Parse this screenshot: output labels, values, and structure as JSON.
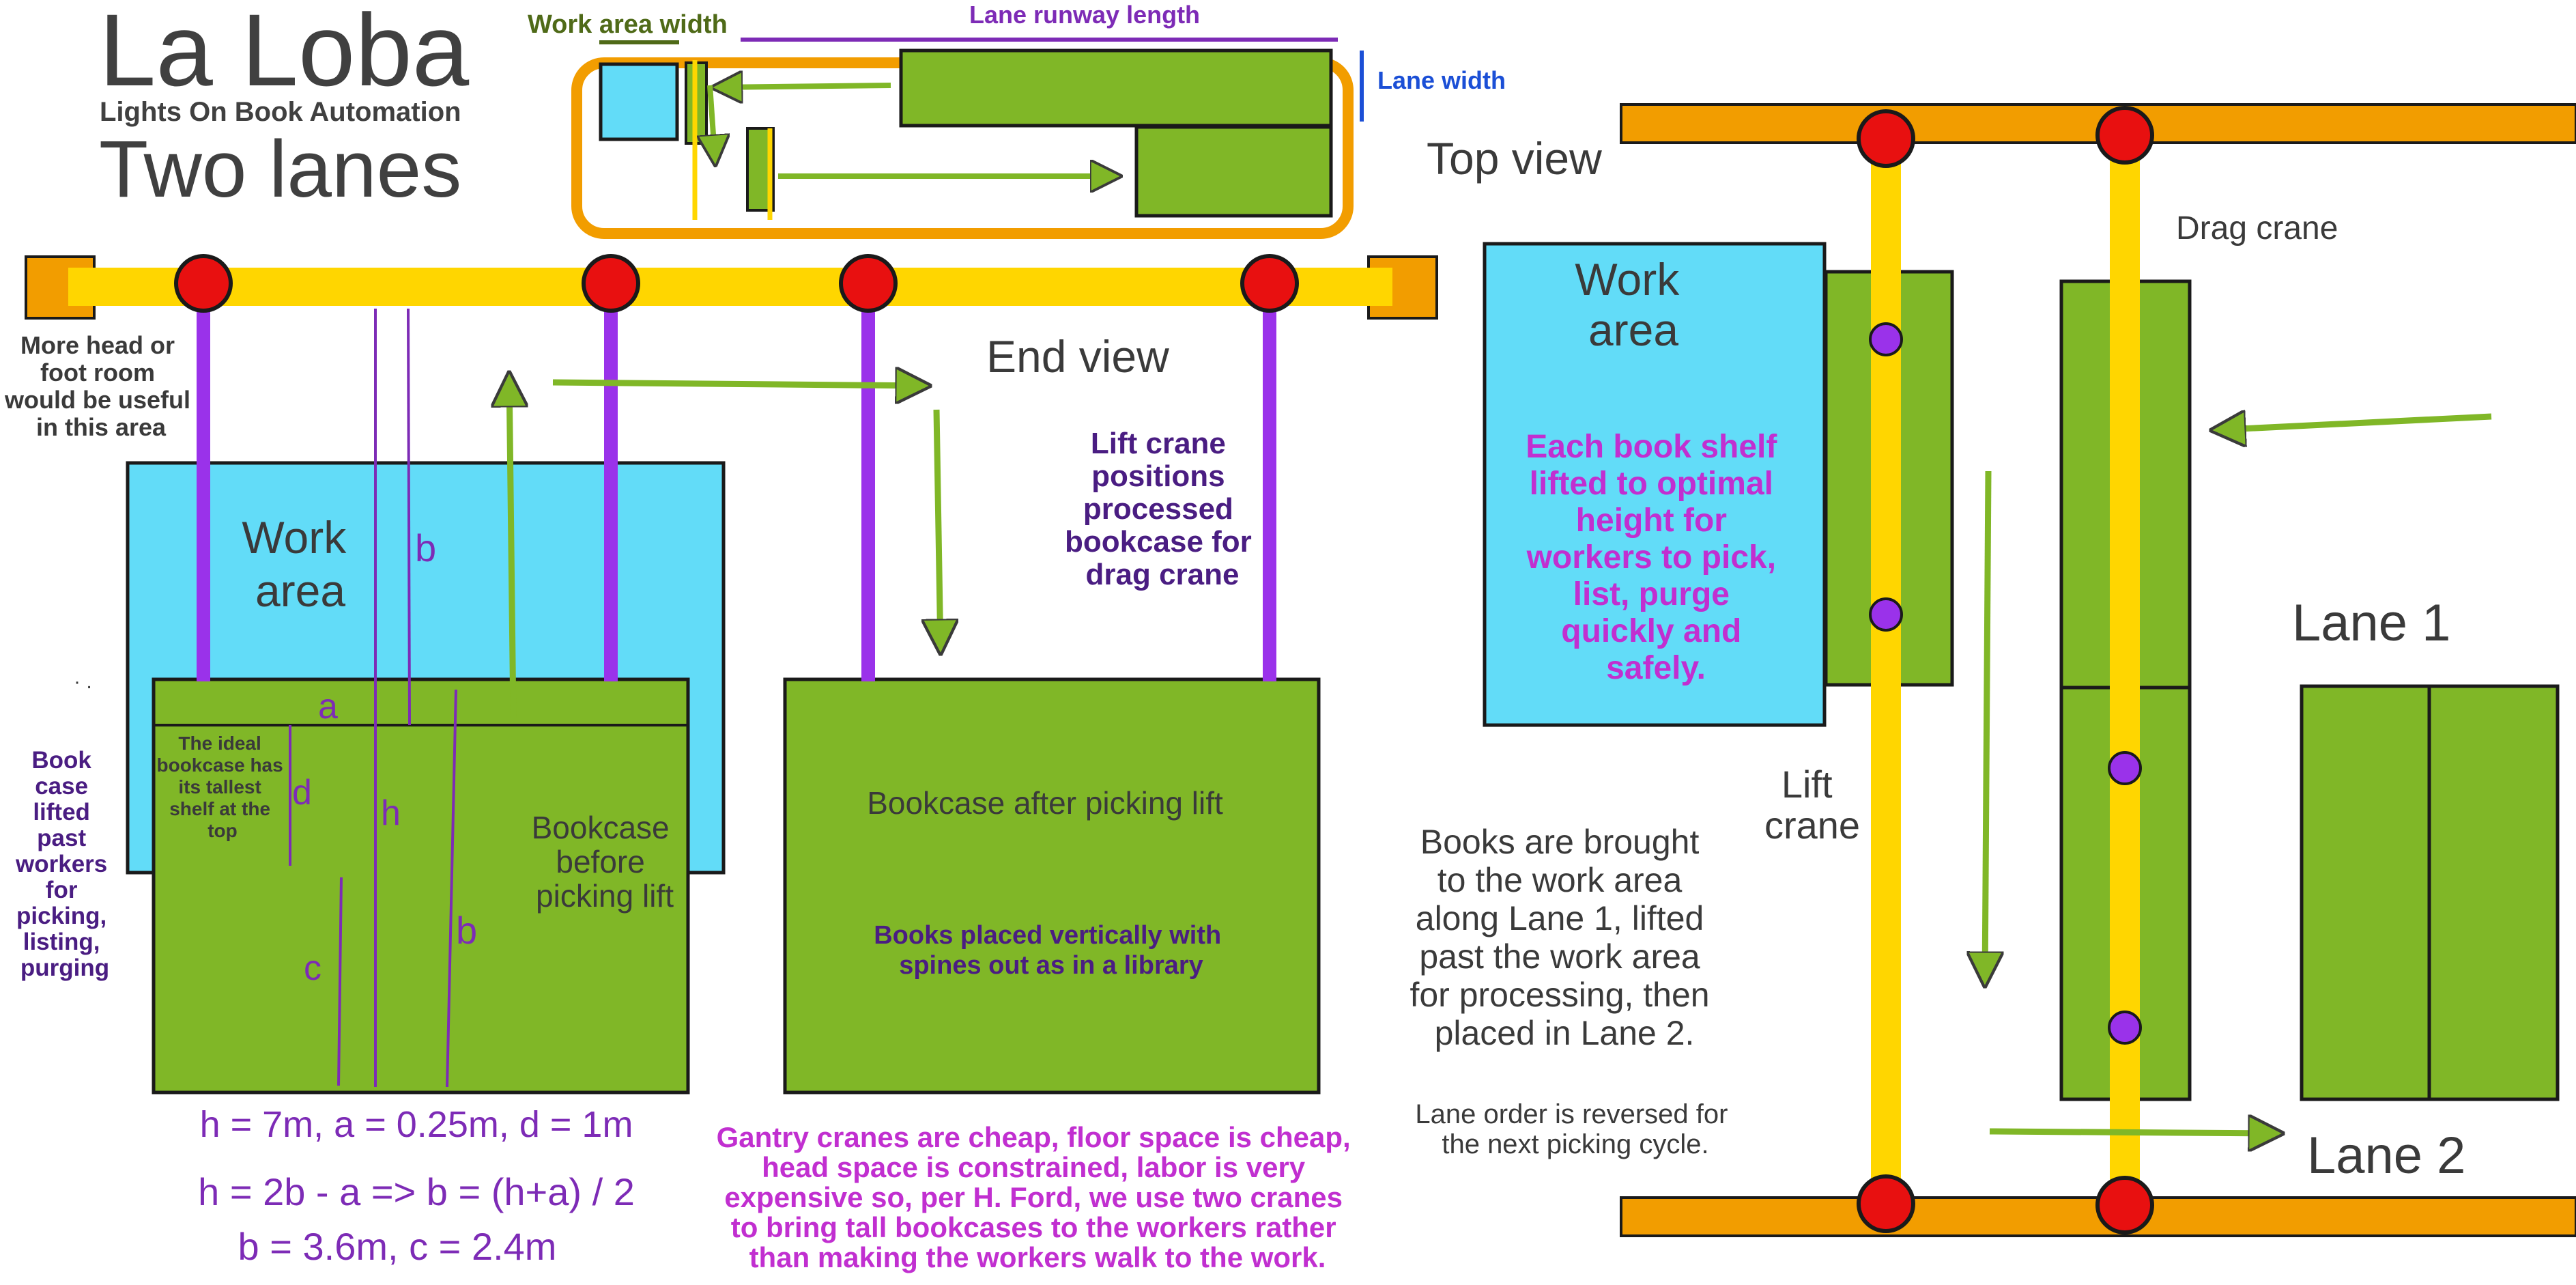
{
  "title": {
    "name": "La Loba",
    "subtitle": "Lights On Book Automation",
    "variant": "Two lanes"
  },
  "inset": {
    "work_area_width_label": "Work area width",
    "lane_runway_label": "Lane runway length",
    "lane_width_label": "Lane width"
  },
  "end_view": {
    "title": "End view",
    "headroom_note": [
      "More head or",
      "foot room",
      "would be useful",
      "in this area"
    ],
    "work_area_label": [
      "Work",
      "area"
    ],
    "book_case_lifted_note": [
      "Book",
      "case",
      "lifted",
      "past",
      "workers",
      "for",
      "picking,",
      "listing,",
      "purging"
    ],
    "ideal_bookcase_note": [
      "The ideal",
      "bookcase has",
      "its  tallest",
      "shelf at the",
      "top"
    ],
    "bookcase_before_label": [
      "Bookcase",
      "before",
      "picking lift"
    ],
    "bookcase_after_label": "Bookcase after picking  lift",
    "books_placed_note": [
      "Books placed vertically with",
      "spines out as in a library"
    ],
    "lift_crane_note": [
      "Lift crane",
      "positions",
      "processed",
      "bookcase for",
      "drag crane"
    ],
    "dimension_letters": {
      "a": "a",
      "b": "b",
      "c": "c",
      "d": "d",
      "h": "h"
    },
    "stray_mark": "· .",
    "equations": [
      "h = 7m, a =  0.25m, d = 1m",
      "h = 2b - a => b = (h+a) / 2",
      "b = 3.6m, c = 2.4m"
    ],
    "gantry_note": [
      "Gantry cranes are cheap, floor space is cheap,",
      "head space is constrained, labor is very",
      "expensive so, per H. Ford,  we use two cranes",
      "to bring tall bookcases to the workers rather",
      "than making the workers walk to the work."
    ]
  },
  "top_view": {
    "title": "Top view",
    "work_area_label": [
      "Work",
      "area"
    ],
    "shelf_note": [
      "Each book shelf",
      "lifted to optimal",
      "height for",
      "workers to pick,",
      "list, purge",
      "quickly and",
      "safely."
    ],
    "drag_crane_label": "Drag crane",
    "lift_crane_label": [
      "Lift",
      "crane"
    ],
    "lane1_label": "Lane 1",
    "lane2_label": "Lane 2",
    "books_brought_note": [
      "Books are brought",
      "to the work area",
      "along Lane 1, lifted",
      "past the work area",
      "for processing, then",
      "placed in Lane 2."
    ],
    "lane_order_note": [
      "Lane order is reversed for",
      "the next picking cycle."
    ]
  },
  "colors": {
    "work_area": "#62dcf8",
    "bookcase": "#80b727",
    "rail": "#ffd600",
    "beam": "#f29d00",
    "node": "#e81010",
    "cable": "#9a32ea",
    "outline": "#1a1a1a",
    "heading_text": "#404040",
    "purple_text": "#7d2bb6",
    "dark_purple_text": "#4a1d82",
    "magenta_text": "#c12fd0",
    "olive_text": "#4f6a18",
    "blue_text": "#1b4fd6",
    "label_text": "#3a3a3a"
  }
}
